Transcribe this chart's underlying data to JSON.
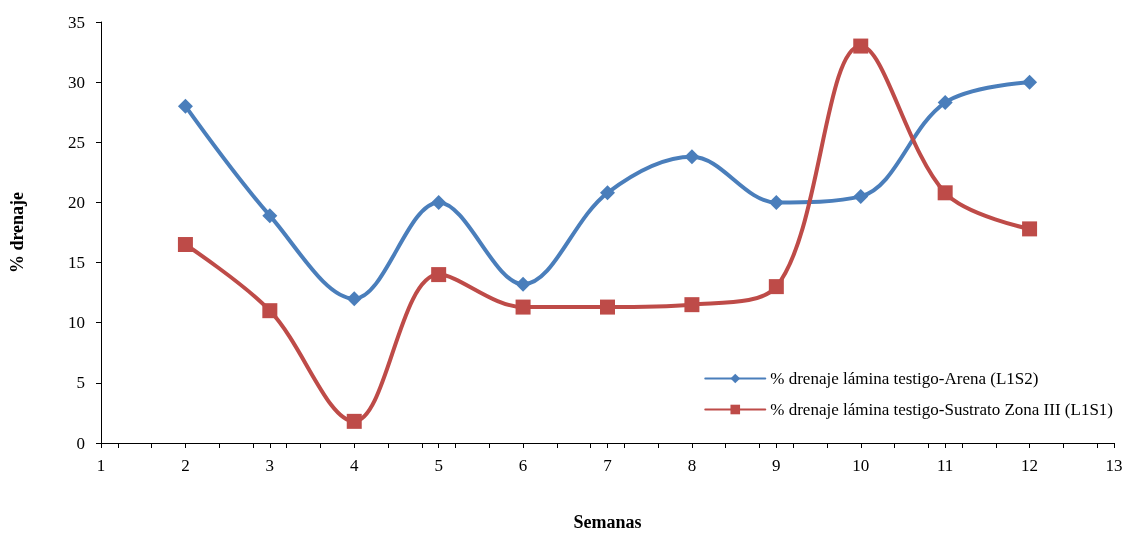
{
  "chart_data": {
    "type": "line",
    "xlabel": "Semanas",
    "ylabel": "% drenaje",
    "x": [
      2,
      3,
      4,
      5,
      6,
      7,
      8,
      9,
      10,
      11,
      12
    ],
    "series": [
      {
        "name": "% drenaje lámina testigo-Arena (L1S2)",
        "color": "#4a7ebb",
        "marker": "diamond",
        "values": [
          28,
          18.9,
          12,
          20,
          13.2,
          20.8,
          23.8,
          20,
          20.5,
          28.3,
          30
        ]
      },
      {
        "name": "% drenaje lámina testigo-Sustrato Zona III (L1S1)",
        "color": "#be4b48",
        "marker": "square",
        "values": [
          16.5,
          11,
          1.8,
          14,
          11.3,
          11.3,
          11.5,
          13,
          33,
          20.8,
          17.8
        ]
      }
    ],
    "xlim": [
      1,
      13
    ],
    "xticks": [
      1,
      2,
      3,
      4,
      5,
      6,
      7,
      8,
      9,
      10,
      11,
      12,
      13
    ],
    "ylim": [
      0,
      35
    ],
    "yticks": [
      0,
      5,
      10,
      15,
      20,
      25,
      30,
      35
    ],
    "grid": false,
    "legend": "bottom right",
    "line_style": "solid"
  }
}
